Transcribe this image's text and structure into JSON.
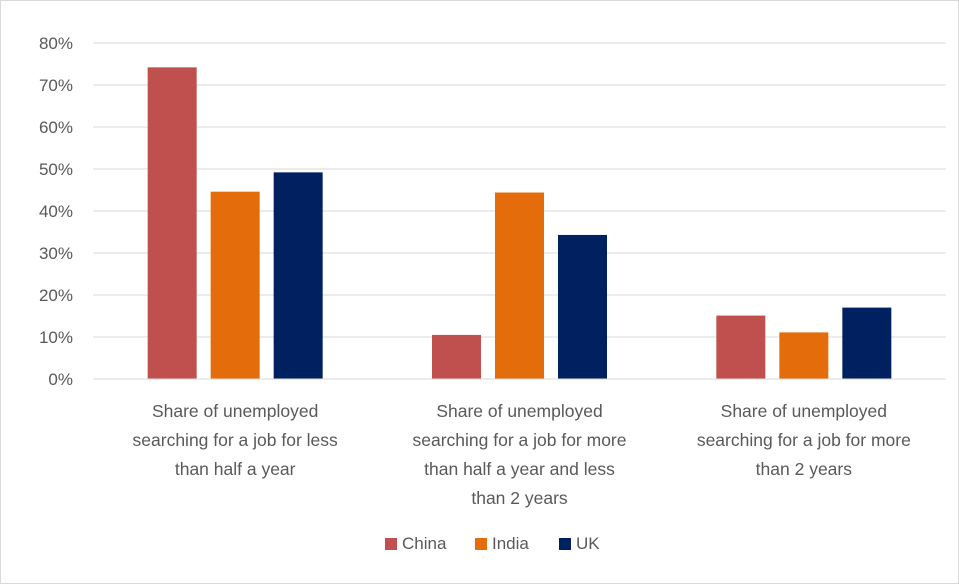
{
  "chart_data": {
    "type": "bar",
    "title": "",
    "xlabel": "",
    "ylabel": "",
    "ylim": [
      0,
      80
    ],
    "y_tick_values": [
      0,
      10,
      20,
      30,
      40,
      50,
      60,
      70,
      80
    ],
    "y_tick_labels": [
      "0%",
      "10%",
      "20%",
      "30%",
      "40%",
      "50%",
      "60%",
      "70%",
      "80%"
    ],
    "grid": true,
    "legend_position": "bottom",
    "categories": [
      [
        "Share of unemployed",
        "searching for a job for less",
        "than half a year"
      ],
      [
        "Share of unemployed",
        "searching for a job for more",
        "than half a year and less",
        "than 2 years"
      ],
      [
        "Share of unemployed",
        "searching for a job for more",
        "than  2  years"
      ]
    ],
    "series": [
      {
        "name": "China",
        "color": "#c0504d",
        "values": [
          74.2,
          10.5,
          15.1
        ]
      },
      {
        "name": "India",
        "color": "#e46c0a",
        "values": [
          44.6,
          44.4,
          11.1
        ]
      },
      {
        "name": "UK",
        "color": "#002060",
        "values": [
          49.2,
          34.3,
          17.0
        ]
      }
    ]
  }
}
